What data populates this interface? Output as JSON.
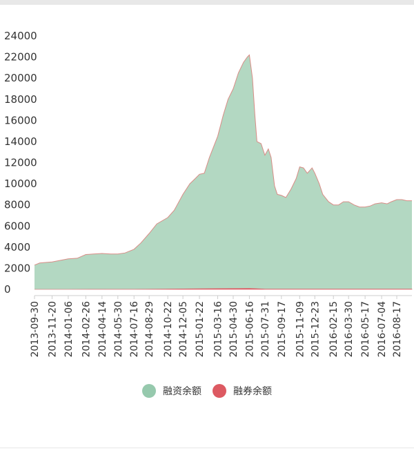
{
  "chart_data": {
    "type": "area",
    "y_ticks": [
      "0",
      "2000",
      "4000",
      "6000",
      "8000",
      "10000",
      "12000",
      "14000",
      "16000",
      "18000",
      "20000",
      "22000",
      "24000"
    ],
    "ylim": [
      0,
      24000
    ],
    "x_ticks": [
      "2013-09-30",
      "2013-11-20",
      "2014-01-06",
      "2014-02-26",
      "2014-04-14",
      "2014-05-30",
      "2014-07-16",
      "2014-08-29",
      "2014-10-22",
      "2014-12-05",
      "2015-01-22",
      "2015-03-16",
      "2015-04-30",
      "2015-06-16",
      "2015-07-31",
      "2015-09-17",
      "2015-11-09",
      "2015-12-23",
      "2016-02-15",
      "2016-03-30",
      "2016-05-17",
      "2016-07-04",
      "2016-08-17"
    ],
    "xlim": [
      "2013-09-30",
      "2016-09-30"
    ],
    "legend_position": "bottom-center",
    "series": [
      {
        "name": "融资余额",
        "color": "#96c9ad",
        "points": [
          [
            "2013-09-30",
            2300
          ],
          [
            "2013-10-15",
            2500
          ],
          [
            "2013-11-01",
            2550
          ],
          [
            "2013-11-20",
            2600
          ],
          [
            "2013-12-15",
            2750
          ],
          [
            "2014-01-06",
            2900
          ],
          [
            "2014-02-01",
            2950
          ],
          [
            "2014-02-26",
            3300
          ],
          [
            "2014-03-20",
            3350
          ],
          [
            "2014-04-14",
            3400
          ],
          [
            "2014-05-10",
            3350
          ],
          [
            "2014-05-30",
            3350
          ],
          [
            "2014-06-20",
            3450
          ],
          [
            "2014-07-16",
            3800
          ],
          [
            "2014-08-05",
            4400
          ],
          [
            "2014-08-29",
            5300
          ],
          [
            "2014-09-20",
            6200
          ],
          [
            "2014-10-22",
            6800
          ],
          [
            "2014-11-10",
            7500
          ],
          [
            "2014-12-05",
            9000
          ],
          [
            "2014-12-25",
            10000
          ],
          [
            "2015-01-10",
            10500
          ],
          [
            "2015-01-22",
            10900
          ],
          [
            "2015-02-05",
            11000
          ],
          [
            "2015-02-20",
            12500
          ],
          [
            "2015-03-16",
            14500
          ],
          [
            "2015-04-01",
            16500
          ],
          [
            "2015-04-15",
            18000
          ],
          [
            "2015-04-30",
            19000
          ],
          [
            "2015-05-15",
            20500
          ],
          [
            "2015-05-30",
            21500
          ],
          [
            "2015-06-10",
            22000
          ],
          [
            "2015-06-16",
            22200
          ],
          [
            "2015-06-25",
            20000
          ],
          [
            "2015-07-02",
            16500
          ],
          [
            "2015-07-08",
            14000
          ],
          [
            "2015-07-20",
            13800
          ],
          [
            "2015-07-31",
            12700
          ],
          [
            "2015-08-10",
            13300
          ],
          [
            "2015-08-18",
            12500
          ],
          [
            "2015-08-28",
            9800
          ],
          [
            "2015-09-05",
            9000
          ],
          [
            "2015-09-17",
            8900
          ],
          [
            "2015-09-30",
            8700
          ],
          [
            "2015-10-15",
            9500
          ],
          [
            "2015-10-30",
            10500
          ],
          [
            "2015-11-09",
            11600
          ],
          [
            "2015-11-20",
            11500
          ],
          [
            "2015-12-01",
            11000
          ],
          [
            "2015-12-15",
            11500
          ],
          [
            "2015-12-23",
            11000
          ],
          [
            "2016-01-05",
            10000
          ],
          [
            "2016-01-15",
            9000
          ],
          [
            "2016-02-01",
            8300
          ],
          [
            "2016-02-15",
            8000
          ],
          [
            "2016-03-01",
            8000
          ],
          [
            "2016-03-15",
            8300
          ],
          [
            "2016-03-30",
            8300
          ],
          [
            "2016-04-15",
            8000
          ],
          [
            "2016-05-01",
            7800
          ],
          [
            "2016-05-17",
            7800
          ],
          [
            "2016-06-01",
            7900
          ],
          [
            "2016-06-15",
            8100
          ],
          [
            "2016-07-04",
            8200
          ],
          [
            "2016-07-20",
            8100
          ],
          [
            "2016-08-01",
            8300
          ],
          [
            "2016-08-17",
            8500
          ],
          [
            "2016-09-01",
            8500
          ],
          [
            "2016-09-15",
            8400
          ],
          [
            "2016-09-30",
            8400
          ]
        ]
      },
      {
        "name": "融券余额",
        "color": "#dd5a62",
        "points": [
          [
            "2013-09-30",
            2
          ],
          [
            "2014-01-06",
            3
          ],
          [
            "2014-07-16",
            6
          ],
          [
            "2015-01-22",
            60
          ],
          [
            "2015-06-16",
            100
          ],
          [
            "2015-07-31",
            30
          ],
          [
            "2015-12-23",
            25
          ],
          [
            "2016-08-17",
            25
          ],
          [
            "2016-09-30",
            25
          ]
        ]
      }
    ]
  }
}
